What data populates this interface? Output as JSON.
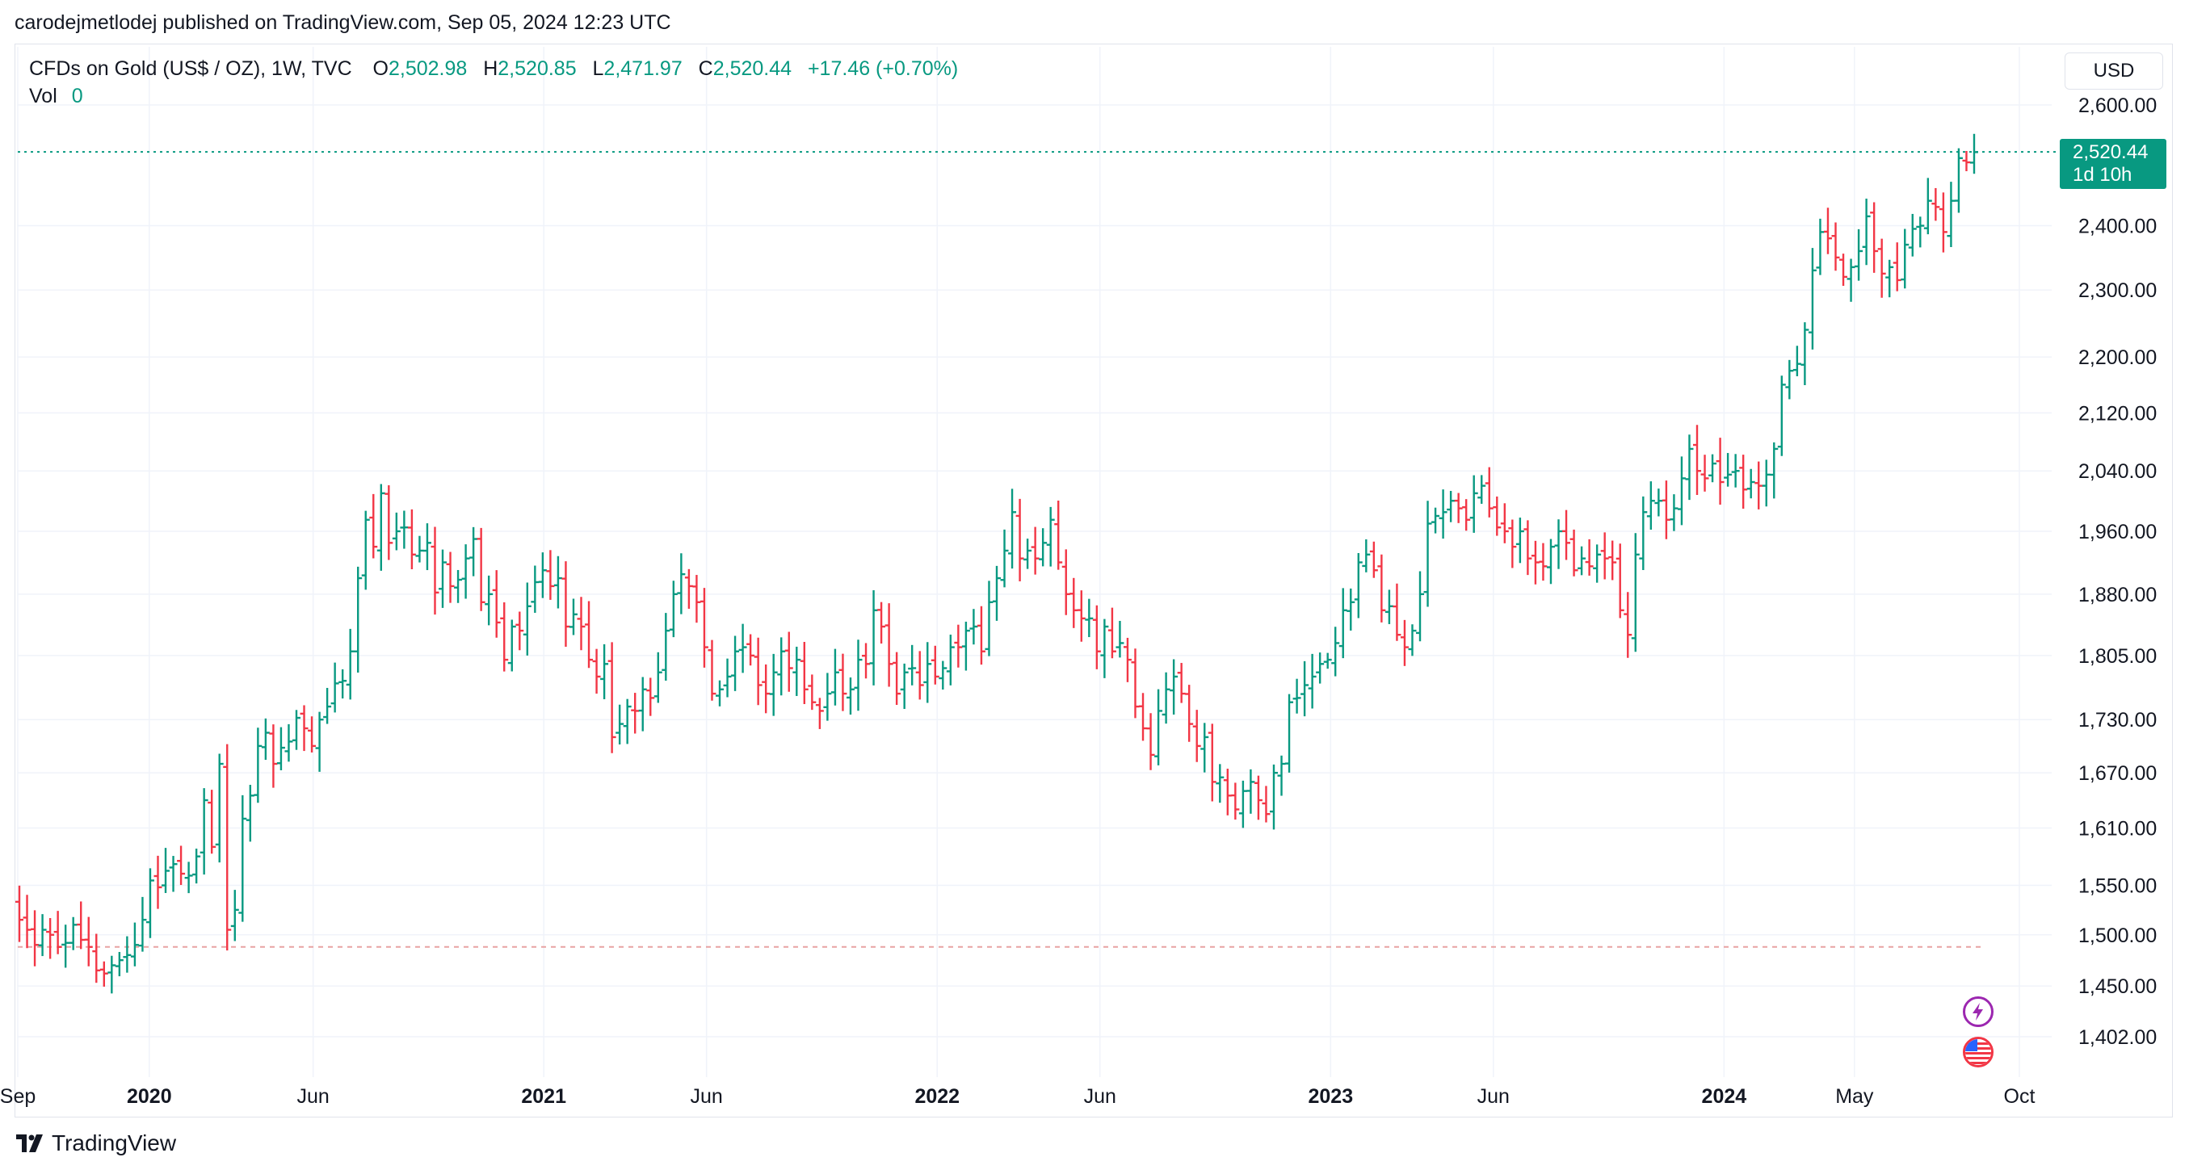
{
  "header": {
    "published": "carodejmetlodej published on TradingView.com, Sep 05, 2024 12:23 UTC"
  },
  "legend": {
    "symbol": "CFDs on Gold (US$ / OZ), 1W, TVC",
    "o_label": "O",
    "o_value": "2,502.98",
    "h_label": "H",
    "h_value": "2,520.85",
    "l_label": "L",
    "l_value": "2,471.97",
    "c_label": "C",
    "c_value": "2,520.44",
    "change": "+17.46 (+0.70%)",
    "vol_label": "Vol",
    "vol_value": "0"
  },
  "currency": "USD",
  "last_price": {
    "value": "2,520.44",
    "countdown": "1d 10h",
    "color": "#089981"
  },
  "colors": {
    "up": "#089981",
    "down": "#f23645",
    "grid": "#f0f3fa",
    "axis_text": "#131722"
  },
  "events": [
    {
      "icon": "lightning-icon"
    },
    {
      "icon": "us-flag-icon"
    }
  ],
  "footer": {
    "brand": "TradingView"
  },
  "chart_data": {
    "type": "ohlc",
    "y_scale": "log",
    "ylim": [
      1360,
      2700
    ],
    "y_ticks": [
      {
        "value": 2600,
        "label": "2,600.00"
      },
      {
        "value": 2400,
        "label": "2,400.00"
      },
      {
        "value": 2300,
        "label": "2,300.00"
      },
      {
        "value": 2200,
        "label": "2,200.00"
      },
      {
        "value": 2120,
        "label": "2,120.00"
      },
      {
        "value": 2040,
        "label": "2,040.00"
      },
      {
        "value": 1960,
        "label": "1,960.00"
      },
      {
        "value": 1880,
        "label": "1,880.00"
      },
      {
        "value": 1805,
        "label": "1,805.00"
      },
      {
        "value": 1730,
        "label": "1,730.00"
      },
      {
        "value": 1670,
        "label": "1,670.00"
      },
      {
        "value": 1610,
        "label": "1,610.00"
      },
      {
        "value": 1550,
        "label": "1,550.00"
      },
      {
        "value": 1500,
        "label": "1,500.00"
      },
      {
        "value": 1450,
        "label": "1,450.00"
      },
      {
        "value": 1402,
        "label": "1,402.00"
      }
    ],
    "x_ticks": [
      {
        "date": "2019-09-01",
        "label": "Sep",
        "bold": false
      },
      {
        "date": "2020-01-01",
        "label": "2020",
        "bold": true
      },
      {
        "date": "2020-06-01",
        "label": "Jun",
        "bold": false
      },
      {
        "date": "2021-01-01",
        "label": "2021",
        "bold": true
      },
      {
        "date": "2021-06-01",
        "label": "Jun",
        "bold": false
      },
      {
        "date": "2022-01-01",
        "label": "2022",
        "bold": true
      },
      {
        "date": "2022-06-01",
        "label": "Jun",
        "bold": false
      },
      {
        "date": "2023-01-01",
        "label": "2023",
        "bold": true
      },
      {
        "date": "2023-06-01",
        "label": "Jun",
        "bold": false
      },
      {
        "date": "2024-01-01",
        "label": "2024",
        "bold": true
      },
      {
        "date": "2024-05-01",
        "label": "May",
        "bold": false
      },
      {
        "date": "2024-10-01",
        "label": "Oct",
        "bold": false
      }
    ],
    "xlim": [
      "2019-09-01",
      "2024-10-01"
    ],
    "last_price_line": 2520.44,
    "reference_line": 1488,
    "closes": [
      1515,
      1505,
      1490,
      1505,
      1500,
      1488,
      1492,
      1510,
      1495,
      1488,
      1465,
      1462,
      1470,
      1475,
      1480,
      1490,
      1515,
      1555,
      1548,
      1565,
      1572,
      1562,
      1560,
      1580,
      1640,
      1590,
      1680,
      1505,
      1525,
      1620,
      1645,
      1700,
      1715,
      1680,
      1698,
      1705,
      1732,
      1720,
      1700,
      1730,
      1745,
      1772,
      1775,
      1810,
      1900,
      1975,
      1940,
      2010,
      1945,
      1960,
      1965,
      1930,
      1935,
      1945,
      1882,
      1920,
      1890,
      1898,
      1925,
      1950,
      1870,
      1880,
      1845,
      1800,
      1840,
      1835,
      1865,
      1895,
      1910,
      1890,
      1900,
      1840,
      1855,
      1840,
      1800,
      1780,
      1795,
      1710,
      1725,
      1745,
      1740,
      1765,
      1755,
      1785,
      1835,
      1880,
      1905,
      1890,
      1870,
      1815,
      1760,
      1765,
      1780,
      1810,
      1815,
      1805,
      1770,
      1760,
      1785,
      1810,
      1790,
      1800,
      1765,
      1750,
      1740,
      1760,
      1785,
      1760,
      1765,
      1800,
      1795,
      1860,
      1840,
      1795,
      1760,
      1785,
      1790,
      1770,
      1795,
      1780,
      1790,
      1815,
      1815,
      1835,
      1840,
      1810,
      1870,
      1900,
      1935,
      1985,
      1925,
      1935,
      1925,
      1945,
      1975,
      1920,
      1880,
      1860,
      1850,
      1850,
      1810,
      1840,
      1810,
      1820,
      1800,
      1745,
      1720,
      1690,
      1740,
      1765,
      1780,
      1760,
      1725,
      1700,
      1710,
      1660,
      1665,
      1645,
      1630,
      1650,
      1660,
      1640,
      1625,
      1670,
      1680,
      1750,
      1755,
      1770,
      1780,
      1795,
      1800,
      1820,
      1860,
      1870,
      1920,
      1930,
      1910,
      1860,
      1865,
      1830,
      1815,
      1835,
      1880,
      1970,
      1980,
      1985,
      2000,
      1990,
      1975,
      2010,
      2020,
      1990,
      1965,
      1960,
      1940,
      1960,
      1925,
      1920,
      1915,
      1940,
      1960,
      1945,
      1910,
      1925,
      1915,
      1930,
      1925,
      1920,
      1860,
      1830,
      1930,
      1985,
      2000,
      2000,
      1975,
      1990,
      2030,
      2070,
      2040,
      2030,
      2050,
      2025,
      2035,
      2040,
      2015,
      2025,
      2020,
      2035,
      2070,
      2160,
      2180,
      2190,
      2240,
      2330,
      2390,
      2380,
      2350,
      2320,
      2335,
      2360,
      2415,
      2360,
      2325,
      2335,
      2315,
      2370,
      2395,
      2400,
      2440,
      2430,
      2390,
      2440,
      2510,
      2503,
      2520
    ]
  }
}
